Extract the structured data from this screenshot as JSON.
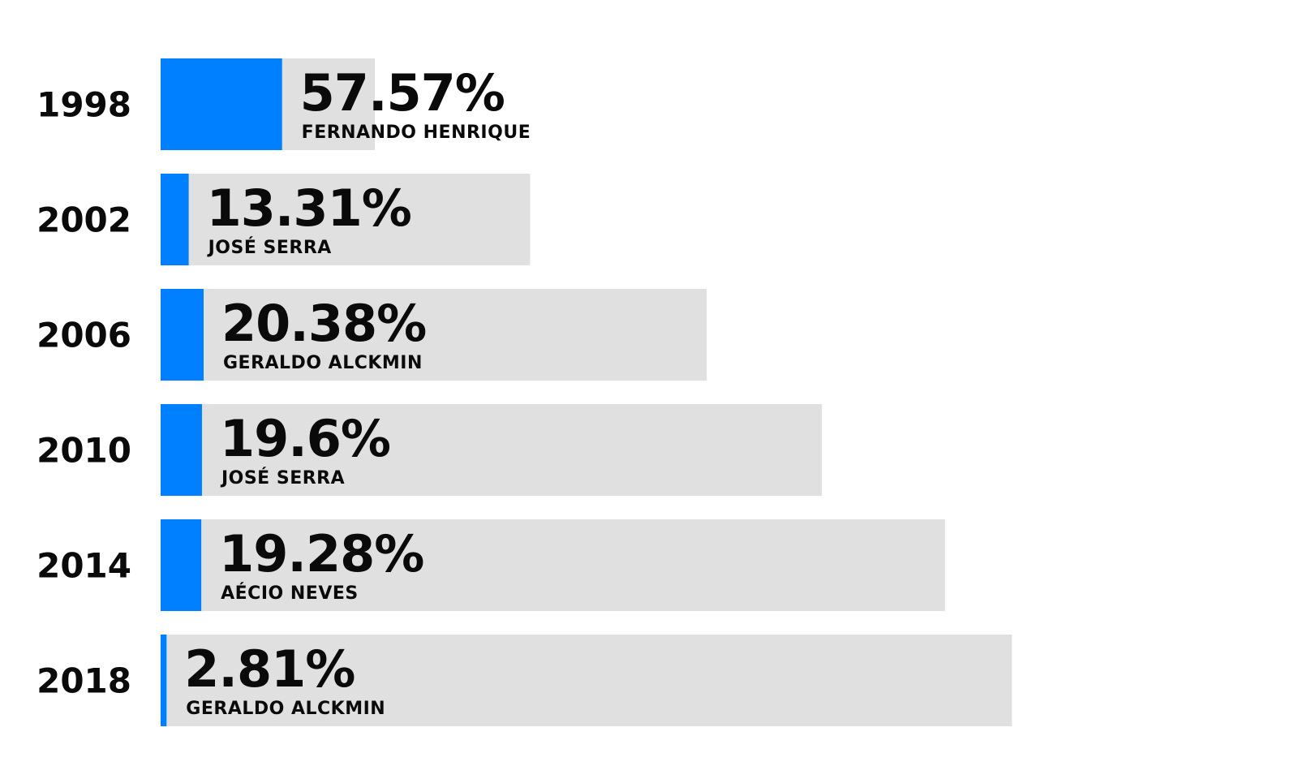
{
  "chart_data": {
    "type": "bar",
    "orientation": "horizontal",
    "categories": [
      "1998",
      "2002",
      "2006",
      "2010",
      "2014",
      "2018"
    ],
    "total_bar_lengths": [
      4.0,
      6.9,
      10.2,
      12.35,
      14.65,
      15.9
    ],
    "series": [
      {
        "values": [
          57.57,
          13.31,
          20.38,
          19.6,
          19.28,
          2.81
        ],
        "value_labels": [
          "57.57%",
          "13.31%",
          "20.38%",
          "19.6%",
          "19.28%",
          "2.81%"
        ],
        "candidates": [
          "FERNANDO HENRIQUE",
          "JOSÉ SERRA",
          "GERALDO ALCKMIN",
          "JOSÉ SERRA",
          "AÉCIO NEVES",
          "GERALDO ALCKMIN"
        ]
      }
    ],
    "colors": {
      "highlight": "#0080ff",
      "track": "#e0e0e0",
      "text": "#0a0a0a"
    },
    "grid": false,
    "legend": "none"
  }
}
